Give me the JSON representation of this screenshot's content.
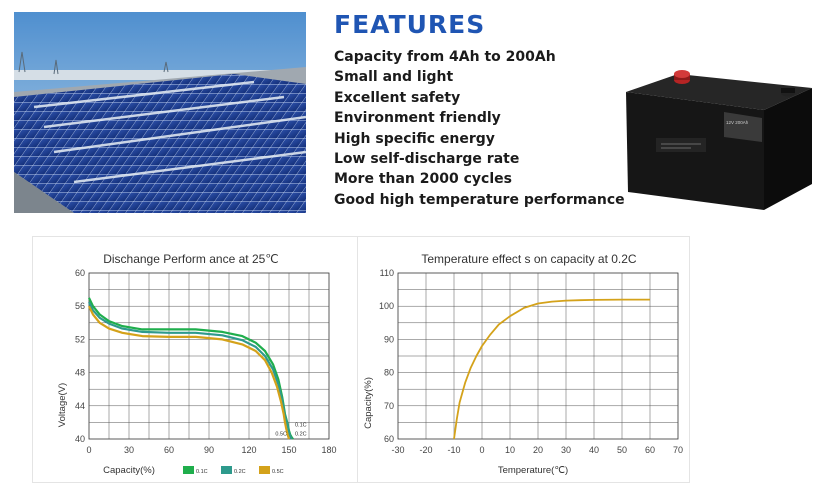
{
  "features": {
    "title": "FEATURES",
    "items": [
      "Capacity from 4Ah to 200Ah",
      "Small and light",
      "Excellent safety",
      "Environment friendly",
      "High specific energy",
      "Low self-discharge rate",
      "More than 2000 cycles",
      "Good high temperature performance"
    ]
  },
  "photos": {
    "solar_icon": "solar-panel-field",
    "battery_icon": "battery-product",
    "battery_label": "12V 200Ah"
  },
  "chart_data": [
    {
      "type": "line",
      "title": "Dischange Perform ance at 25℃",
      "xlabel": "Capacity(%)",
      "ylabel": "Voltage(V)",
      "xlim": [
        0,
        180
      ],
      "ylim": [
        40,
        60
      ],
      "xticks": [
        0,
        30,
        60,
        90,
        120,
        150,
        180
      ],
      "yticks": [
        40,
        44,
        48,
        52,
        56,
        60
      ],
      "ytick_labels": [
        "40",
        "44",
        "48",
        "52",
        "56",
        "60"
      ],
      "grid": true,
      "legend_position": "bottom-center",
      "series": [
        {
          "name": "0.1C",
          "color": "#1fae4c",
          "end_label": "0.1C",
          "x": [
            0,
            3,
            8,
            15,
            25,
            40,
            60,
            80,
            100,
            115,
            125,
            132,
            138,
            142,
            145,
            147,
            149,
            150,
            151,
            152,
            153
          ],
          "y": [
            57.0,
            56.0,
            55.0,
            54.2,
            53.6,
            53.2,
            53.2,
            53.2,
            52.9,
            52.4,
            51.6,
            50.6,
            49.0,
            47.2,
            45.0,
            43.0,
            41.8,
            41.0,
            40.5,
            40.2,
            40.0
          ]
        },
        {
          "name": "0.2C",
          "color": "#2e9a8c",
          "end_label": "0.2C",
          "x": [
            0,
            3,
            8,
            15,
            25,
            40,
            60,
            80,
            100,
            115,
            125,
            132,
            138,
            142,
            145,
            147,
            149,
            150,
            151,
            152
          ],
          "y": [
            56.5,
            55.5,
            54.6,
            53.9,
            53.3,
            52.9,
            52.8,
            52.8,
            52.5,
            51.9,
            51.1,
            50.0,
            48.4,
            46.6,
            44.6,
            42.8,
            41.6,
            40.8,
            40.3,
            40.0
          ]
        },
        {
          "name": "0.5C",
          "color": "#d4a21a",
          "end_label": "0.5C",
          "x": [
            0,
            3,
            8,
            15,
            25,
            40,
            60,
            80,
            100,
            115,
            125,
            132,
            137,
            141,
            144,
            146,
            147,
            148,
            149,
            150
          ],
          "y": [
            56.0,
            55.0,
            54.0,
            53.3,
            52.8,
            52.4,
            52.3,
            52.3,
            52.0,
            51.4,
            50.6,
            49.5,
            48.0,
            46.3,
            44.5,
            43.0,
            42.0,
            41.2,
            40.5,
            40.0
          ]
        }
      ]
    },
    {
      "type": "line",
      "title": "Temperature effect s on capacity at 0.2C",
      "xlabel": "Temperature(℃)",
      "ylabel": "Capacity(%)",
      "xlim": [
        -30,
        70
      ],
      "ylim": [
        60,
        110
      ],
      "xticks": [
        -30,
        -20,
        -10,
        0,
        10,
        20,
        30,
        40,
        50,
        60,
        70
      ],
      "yticks": [
        60,
        70,
        80,
        90,
        100,
        110
      ],
      "grid": true,
      "series": [
        {
          "color": "#d4a21a",
          "x": [
            -10,
            -9,
            -8,
            -6,
            -4,
            -2,
            0,
            3,
            6,
            10,
            15,
            20,
            25,
            30,
            35,
            40,
            50,
            60
          ],
          "y": [
            60,
            66,
            71,
            77,
            81.5,
            85,
            88,
            91.5,
            94.5,
            97,
            99.5,
            100.8,
            101.4,
            101.7,
            101.8,
            101.9,
            102,
            102
          ]
        }
      ]
    }
  ]
}
